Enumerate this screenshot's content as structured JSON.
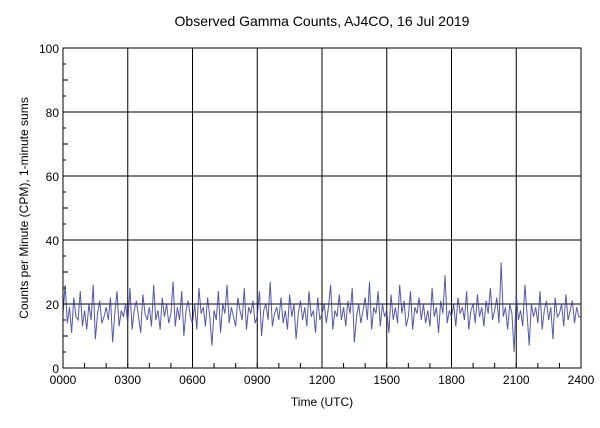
{
  "chart_data": {
    "type": "line",
    "title": "Observed Gamma Counts, AJ4CO, 16 Jul 2019",
    "xlabel": "Time (UTC)",
    "ylabel": "Counts per Minute (CPM), 1-minute sums",
    "xlim": [
      0,
      2400
    ],
    "ylim": [
      0,
      100
    ],
    "x_tick_labels": [
      "0000",
      "0300",
      "0600",
      "0900",
      "1200",
      "1500",
      "1800",
      "2100",
      "2400"
    ],
    "y_tick_labels": [
      "0",
      "20",
      "40",
      "60",
      "80",
      "100"
    ],
    "y_ticks": [
      0,
      20,
      40,
      60,
      80,
      100
    ],
    "grid": true,
    "line_color": "#3a3a9a",
    "sample_interval_minutes": 6,
    "series": [
      {
        "name": "CPM",
        "values": [
          17,
          26,
          14,
          19,
          11,
          22,
          16,
          15,
          24,
          13,
          18,
          12,
          20,
          15,
          26,
          9,
          17,
          21,
          14,
          16,
          19,
          15,
          22,
          8,
          17,
          24,
          13,
          18,
          16,
          20,
          14,
          25,
          12,
          18,
          21,
          16,
          11,
          23,
          17,
          15,
          19,
          13,
          26,
          15,
          18,
          12,
          22,
          16,
          20,
          14,
          17,
          27,
          13,
          19,
          15,
          24,
          10,
          18,
          21,
          16,
          14,
          20,
          12,
          25,
          17,
          19,
          13,
          22,
          16,
          7,
          18,
          15,
          24,
          11,
          20,
          17,
          26,
          14,
          19,
          16,
          13,
          22,
          18,
          15,
          25,
          12,
          19,
          17,
          21,
          14,
          16,
          24,
          10,
          18,
          20,
          15,
          27,
          13,
          17,
          19,
          15,
          22,
          14,
          18,
          12,
          23,
          16,
          20,
          9,
          17,
          21,
          15,
          19,
          13,
          24,
          16,
          18,
          11,
          22,
          15,
          17,
          20,
          14,
          19,
          26,
          12,
          18,
          16,
          23,
          15,
          19,
          13,
          21,
          17,
          25,
          8,
          16,
          20,
          14,
          18,
          22,
          15,
          27,
          12,
          19,
          17,
          24,
          13,
          20,
          16,
          18,
          11,
          23,
          15,
          19,
          14,
          26,
          17,
          21,
          13,
          16,
          24,
          12,
          19,
          17,
          22,
          15,
          20,
          14,
          18,
          13,
          25,
          16,
          19,
          11,
          21,
          17,
          29,
          14,
          18,
          16,
          20,
          13,
          22,
          17,
          19,
          15,
          24,
          12,
          18,
          20,
          14,
          23,
          16,
          19,
          13,
          21,
          17,
          25,
          15,
          18,
          22,
          14,
          33,
          16,
          19,
          12,
          20,
          17,
          5,
          23,
          15,
          18,
          13,
          26,
          17,
          7,
          20,
          16,
          19,
          14,
          24,
          12,
          18,
          21,
          15,
          19,
          9,
          22,
          16,
          17,
          20,
          13,
          23,
          15,
          18,
          21,
          14,
          19,
          16
        ]
      }
    ]
  }
}
